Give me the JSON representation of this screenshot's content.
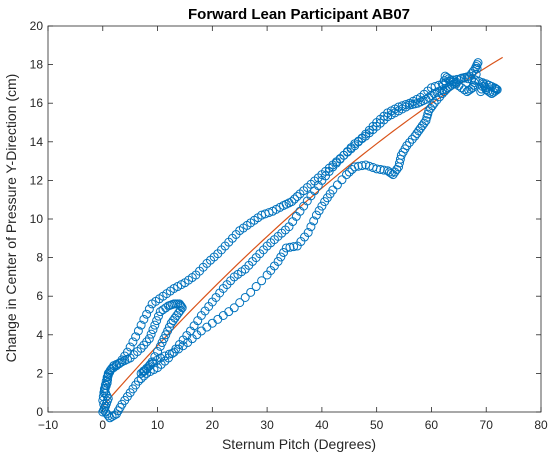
{
  "chart_data": {
    "type": "scatter",
    "title": "Forward Lean Participant AB07",
    "xlabel": "Sternum Pitch (Degrees)",
    "ylabel": "Change in Center of Pressure Y-Direction (cm)",
    "xlim": [
      -10,
      80
    ],
    "ylim": [
      0,
      20
    ],
    "xticks": [
      -10,
      0,
      10,
      20,
      30,
      40,
      50,
      60,
      70,
      80
    ],
    "yticks": [
      0,
      2,
      4,
      6,
      8,
      10,
      12,
      14,
      16,
      18,
      20
    ],
    "grid": false,
    "colors": {
      "markers": "#0072BD",
      "fit": "#D95319"
    },
    "series": [
      {
        "style": "open-circle markers",
        "path": [
          [
            0,
            0
          ],
          [
            0.5,
            0.3
          ],
          [
            1,
            0.7
          ],
          [
            0.3,
            1.1
          ],
          [
            0.8,
            1.5
          ],
          [
            1,
            2
          ],
          [
            2,
            2.4
          ],
          [
            3.5,
            2.6
          ],
          [
            5,
            2.8
          ],
          [
            7,
            3.3
          ],
          [
            8.5,
            3.8
          ],
          [
            9.5,
            4.5
          ],
          [
            10.5,
            5.2
          ],
          [
            12,
            5.5
          ],
          [
            13,
            5.6
          ],
          [
            14,
            5.6
          ],
          [
            14.5,
            5.4
          ],
          [
            13.5,
            5.0
          ],
          [
            12.5,
            4.6
          ],
          [
            11.5,
            4.0
          ],
          [
            10.5,
            3.4
          ],
          [
            9,
            2.6
          ],
          [
            8,
            2.2
          ],
          [
            7,
            2.0
          ],
          [
            8.5,
            2.4
          ],
          [
            10.5,
            2.8
          ],
          [
            13,
            3.1
          ],
          [
            15.5,
            3.6
          ],
          [
            18,
            4.2
          ],
          [
            21,
            4.8
          ],
          [
            24,
            5.4
          ],
          [
            27,
            6.2
          ],
          [
            30,
            7.1
          ],
          [
            32,
            7.8
          ],
          [
            33.5,
            8.5
          ],
          [
            35.5,
            8.6
          ],
          [
            37.5,
            9.3
          ],
          [
            39,
            10.2
          ],
          [
            40.5,
            10.9
          ],
          [
            42,
            11.5
          ],
          [
            44.5,
            12.3
          ],
          [
            46,
            12.7
          ],
          [
            48,
            12.8
          ],
          [
            50,
            12.6
          ],
          [
            52,
            12.5
          ],
          [
            53,
            12.3
          ],
          [
            54,
            12.7
          ],
          [
            54.5,
            13.3
          ],
          [
            55.5,
            13.8
          ],
          [
            57,
            14.3
          ],
          [
            58,
            14.7
          ],
          [
            59,
            15.1
          ],
          [
            59.5,
            15.6
          ],
          [
            60.5,
            16.0
          ],
          [
            62,
            16.5
          ],
          [
            63,
            16.8
          ],
          [
            64,
            17.0
          ],
          [
            65.5,
            17.3
          ],
          [
            67,
            17.4
          ],
          [
            68,
            17.8
          ],
          [
            68.5,
            18.1
          ],
          [
            68,
            17.2
          ],
          [
            67.5,
            16.8
          ],
          [
            66.5,
            16.6
          ],
          [
            65,
            16.9
          ],
          [
            63.5,
            17.2
          ],
          [
            62.5,
            17.4
          ],
          [
            62,
            16.7
          ],
          [
            60.5,
            16.5
          ],
          [
            59,
            16.2
          ],
          [
            57.5,
            16.0
          ],
          [
            56,
            15.9
          ],
          [
            54,
            15.6
          ],
          [
            52,
            15.3
          ],
          [
            50,
            14.8
          ],
          [
            48,
            14.3
          ],
          [
            46,
            13.9
          ],
          [
            44,
            13.3
          ],
          [
            42,
            12.8
          ],
          [
            40,
            12.3
          ],
          [
            38,
            11.8
          ],
          [
            36,
            11.3
          ],
          [
            34.5,
            10.9
          ],
          [
            33,
            10.7
          ],
          [
            31,
            10.4
          ],
          [
            29,
            10.2
          ],
          [
            27,
            9.8
          ],
          [
            25,
            9.4
          ],
          [
            23,
            8.8
          ],
          [
            21,
            8.2
          ],
          [
            19,
            7.7
          ],
          [
            17,
            7.1
          ],
          [
            15,
            6.7
          ],
          [
            13,
            6.4
          ],
          [
            11,
            6.0
          ],
          [
            9,
            5.6
          ],
          [
            7.5,
            4.8
          ],
          [
            6,
            3.9
          ],
          [
            4.5,
            3.1
          ],
          [
            3,
            2.5
          ],
          [
            1.5,
            2.2
          ],
          [
            0.8,
            1.8
          ],
          [
            0.3,
            1.2
          ],
          [
            0,
            0.6
          ],
          [
            0.5,
            0
          ],
          [
            1.3,
            -0.3
          ],
          [
            2.5,
            -0.1
          ],
          [
            3.5,
            0.4
          ],
          [
            5,
            1
          ],
          [
            6.5,
            1.6
          ],
          [
            8,
            2.0
          ],
          [
            10,
            2.3
          ],
          [
            12,
            2.8
          ],
          [
            14,
            3.5
          ],
          [
            16,
            4.2
          ],
          [
            18,
            5.0
          ],
          [
            20,
            5.7
          ],
          [
            22,
            6.4
          ],
          [
            24,
            7.0
          ],
          [
            26,
            7.4
          ],
          [
            28,
            8.0
          ],
          [
            30,
            8.6
          ],
          [
            32,
            9.1
          ],
          [
            34,
            9.6
          ],
          [
            36,
            10.4
          ],
          [
            38,
            11.2
          ],
          [
            40,
            12.0
          ],
          [
            42,
            12.7
          ],
          [
            44,
            13.3
          ],
          [
            46,
            13.8
          ],
          [
            48,
            14.4
          ],
          [
            50,
            15.0
          ],
          [
            52,
            15.5
          ],
          [
            54,
            15.8
          ],
          [
            56,
            16.0
          ],
          [
            58,
            16.3
          ],
          [
            60,
            16.8
          ],
          [
            62,
            17.0
          ],
          [
            64,
            17.2
          ],
          [
            66,
            17.3
          ],
          [
            68,
            17.2
          ],
          [
            70,
            17.0
          ],
          [
            71.5,
            16.8
          ],
          [
            72,
            16.7
          ],
          [
            71,
            16.5
          ],
          [
            70,
            16.7
          ],
          [
            69.5,
            17.0
          ],
          [
            69,
            16.6
          ]
        ]
      },
      {
        "style": "fit line",
        "fit_poly": [
          0.3,
          0.325,
          -0.00106
        ],
        "x_range": [
          0,
          73
        ]
      }
    ]
  }
}
